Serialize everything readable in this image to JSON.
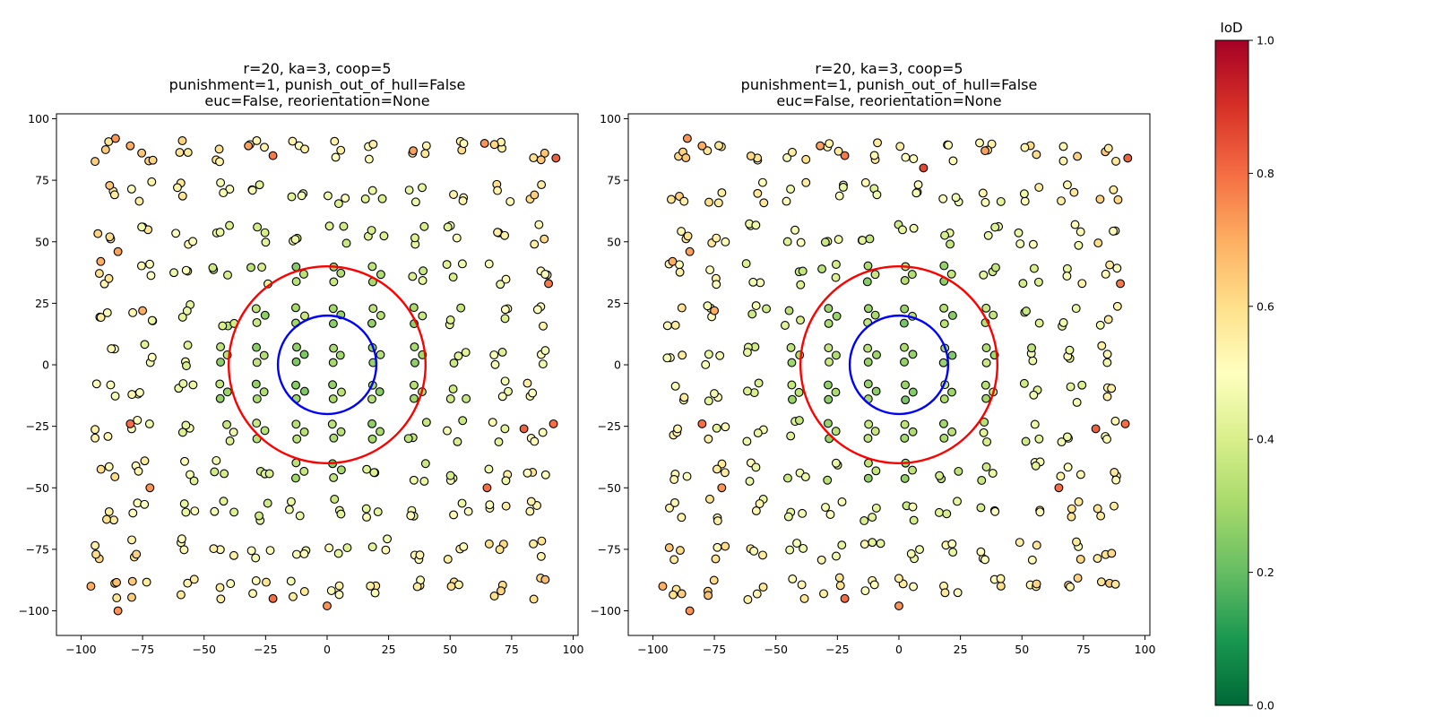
{
  "chart_data": [
    {
      "type": "scatter",
      "panel": "left",
      "title_lines": [
        "r=20, ka=3, coop=5",
        "punishment=1, punish_out_of_hull=False",
        "euc=False, reorientation=None"
      ],
      "xlim": [
        -110,
        102
      ],
      "ylim": [
        -110,
        102
      ],
      "xticks": [
        -100,
        -75,
        -50,
        -25,
        0,
        25,
        50,
        75,
        100
      ],
      "yticks": [
        -100,
        -75,
        -50,
        -25,
        0,
        25,
        50,
        75,
        100
      ],
      "xlabel": "",
      "ylabel": "",
      "grid": false,
      "circles": [
        {
          "color": "#ff0000",
          "cx": 0,
          "cy": 0,
          "r": 40
        },
        {
          "color": "#0000ff",
          "cx": 0,
          "cy": 0,
          "r": 20
        }
      ],
      "lattice": {
        "x": [
          -90,
          -75,
          -58,
          -42,
          -27,
          -11,
          4,
          20,
          37,
          53,
          70,
          85
        ],
        "y": [
          87,
          70,
          53,
          37,
          20,
          4,
          -11,
          -27,
          -43,
          -59,
          -75,
          -91
        ],
        "cluster_size": 3,
        "color_by": "IoD"
      },
      "highlight_points": [
        {
          "x": -80,
          "y": 89,
          "iod": 0.7
        },
        {
          "x": -86,
          "y": 92,
          "iod": 0.74
        },
        {
          "x": -32,
          "y": 89,
          "iod": 0.72
        },
        {
          "x": -22,
          "y": 85,
          "iod": 0.78
        },
        {
          "x": 93,
          "y": 84,
          "iod": 0.82
        },
        {
          "x": 64,
          "y": 90,
          "iod": 0.74
        },
        {
          "x": 90,
          "y": 33,
          "iod": 0.78
        },
        {
          "x": -92,
          "y": 42,
          "iod": 0.7
        },
        {
          "x": -85,
          "y": 46,
          "iod": 0.72
        },
        {
          "x": -80,
          "y": -24,
          "iod": 0.8
        },
        {
          "x": 80,
          "y": -26,
          "iod": 0.82
        },
        {
          "x": 92,
          "y": -24,
          "iod": 0.8
        },
        {
          "x": -72,
          "y": -50,
          "iod": 0.74
        },
        {
          "x": 65,
          "y": -50,
          "iod": 0.8
        },
        {
          "x": -22,
          "y": -95,
          "iod": 0.8
        },
        {
          "x": -85,
          "y": -100,
          "iod": 0.74
        },
        {
          "x": -96,
          "y": -90,
          "iod": 0.7
        },
        {
          "x": 0,
          "y": -98,
          "iod": 0.74
        },
        {
          "x": 35,
          "y": 87,
          "iod": 0.72
        },
        {
          "x": -75,
          "y": 22,
          "iod": 0.7
        }
      ]
    },
    {
      "type": "scatter",
      "panel": "right",
      "title_lines": [
        "r=20, ka=3, coop=5",
        "punishment=1, punish_out_of_hull=False",
        "euc=False, reorientation=None"
      ],
      "xlim": [
        -110,
        102
      ],
      "ylim": [
        -110,
        102
      ],
      "xticks": [
        -100,
        -75,
        -50,
        -25,
        0,
        25,
        50,
        75,
        100
      ],
      "yticks": [
        -100,
        -75,
        -50,
        -25,
        0,
        25,
        50,
        75,
        100
      ],
      "xlabel": "",
      "ylabel": "",
      "grid": false,
      "circles": [
        {
          "color": "#ff0000",
          "cx": 0,
          "cy": 0,
          "r": 40
        },
        {
          "color": "#0000ff",
          "cx": 0,
          "cy": 0,
          "r": 20
        }
      ],
      "lattice": {
        "x": [
          -90,
          -75,
          -58,
          -42,
          -27,
          -11,
          4,
          20,
          37,
          53,
          70,
          85
        ],
        "y": [
          87,
          70,
          53,
          37,
          20,
          4,
          -11,
          -27,
          -43,
          -59,
          -75,
          -91
        ],
        "cluster_size": 3,
        "color_by": "IoD"
      },
      "highlight_points": [
        {
          "x": -80,
          "y": 89,
          "iod": 0.7
        },
        {
          "x": -86,
          "y": 92,
          "iod": 0.74
        },
        {
          "x": -32,
          "y": 89,
          "iod": 0.72
        },
        {
          "x": -22,
          "y": 85,
          "iod": 0.78
        },
        {
          "x": 93,
          "y": 84,
          "iod": 0.82
        },
        {
          "x": 10,
          "y": 80,
          "iod": 0.86
        },
        {
          "x": 90,
          "y": 33,
          "iod": 0.78
        },
        {
          "x": -92,
          "y": 42,
          "iod": 0.7
        },
        {
          "x": -85,
          "y": 46,
          "iod": 0.72
        },
        {
          "x": -80,
          "y": -24,
          "iod": 0.8
        },
        {
          "x": 80,
          "y": -26,
          "iod": 0.82
        },
        {
          "x": 92,
          "y": -24,
          "iod": 0.8
        },
        {
          "x": -72,
          "y": -50,
          "iod": 0.74
        },
        {
          "x": 65,
          "y": -50,
          "iod": 0.8
        },
        {
          "x": -22,
          "y": -95,
          "iod": 0.8
        },
        {
          "x": -85,
          "y": -100,
          "iod": 0.74
        },
        {
          "x": -96,
          "y": -90,
          "iod": 0.7
        },
        {
          "x": 0,
          "y": -98,
          "iod": 0.74
        },
        {
          "x": 35,
          "y": 87,
          "iod": 0.72
        },
        {
          "x": -75,
          "y": 22,
          "iod": 0.7
        }
      ]
    }
  ],
  "colorbar": {
    "title": "IoD",
    "ticks": [
      0.0,
      0.2,
      0.4,
      0.6,
      0.8,
      1.0
    ],
    "tick_labels": [
      "0.0",
      "0.2",
      "0.4",
      "0.6",
      "0.8",
      "1.0"
    ],
    "colormap": "RdYlGn_r",
    "stops": [
      "#006837",
      "#1a9850",
      "#66bd63",
      "#a6d96a",
      "#d9ef8b",
      "#ffffbf",
      "#fee08b",
      "#fdae61",
      "#f46d43",
      "#d73027",
      "#a50026"
    ]
  }
}
